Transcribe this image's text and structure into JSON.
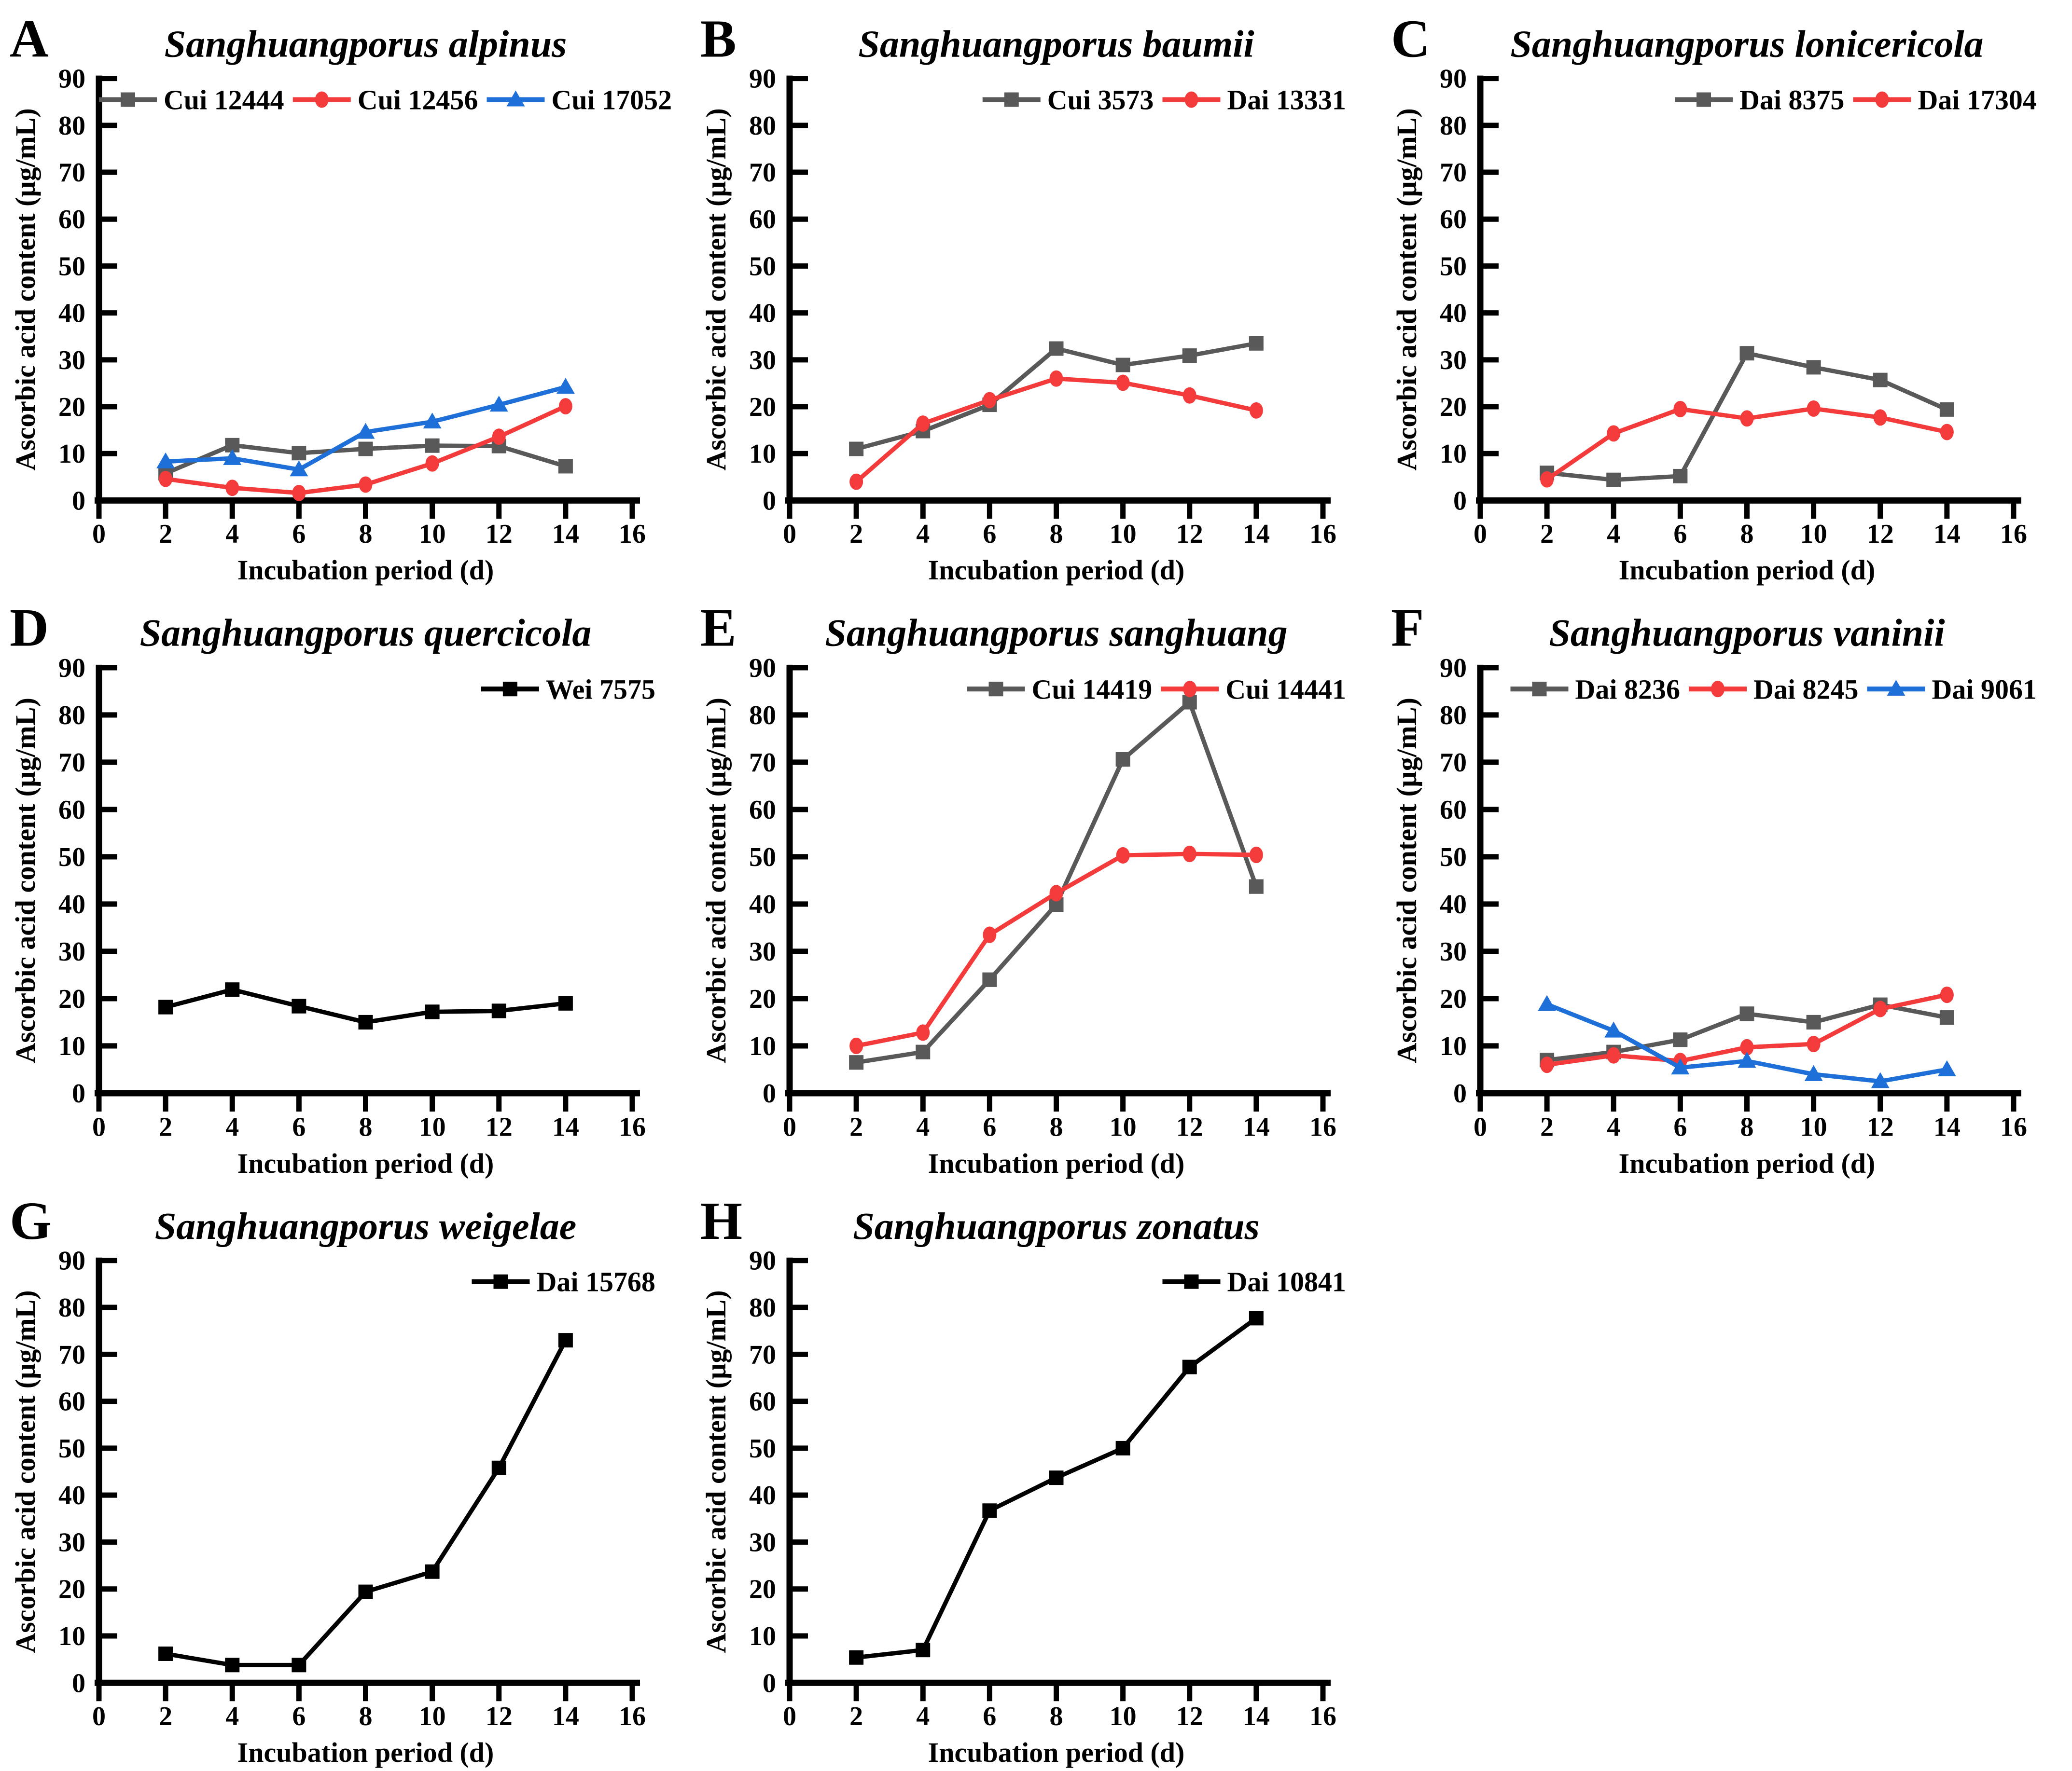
{
  "figure": {
    "xlabel": "Incubation period (d)",
    "ylabel": "Ascorbic acid content (µg/mL)",
    "xlim": [
      0,
      16
    ],
    "ylim": [
      0,
      90
    ],
    "x_ticks": [
      0,
      2,
      4,
      6,
      8,
      10,
      12,
      14,
      16
    ],
    "y_ticks": [
      0,
      10,
      20,
      30,
      40,
      50,
      60,
      70,
      80,
      90
    ],
    "grid": "off",
    "legend_position": "inside-top-right"
  },
  "palette": {
    "gray": "#595959",
    "red": "#F43B3C",
    "blue": "#1E6FD8",
    "black": "#000000"
  },
  "chart_data": [
    {
      "panel": "A",
      "type": "line",
      "title": "Sanghuangporus alpinus",
      "xlabel": "Incubation period (d)",
      "ylabel": "Ascorbic acid content (µg/mL)",
      "xlim": [
        0,
        16
      ],
      "ylim": [
        0,
        90
      ],
      "x": [
        2,
        4,
        6,
        8,
        10,
        12,
        14
      ],
      "series": [
        {
          "name": "Cui 12444",
          "color": "#595959",
          "marker": "square",
          "values": [
            5.8,
            11.8,
            10.1,
            11.0,
            11.7,
            11.6,
            7.3
          ]
        },
        {
          "name": "Cui 12456",
          "color": "#F43B3C",
          "marker": "circle",
          "values": [
            4.6,
            2.7,
            1.6,
            3.4,
            7.9,
            13.6,
            20.1
          ]
        },
        {
          "name": "Cui 17052",
          "color": "#1E6FD8",
          "marker": "triangle",
          "values": [
            8.3,
            9.0,
            6.6,
            14.6,
            16.8,
            20.4,
            24.2
          ]
        }
      ]
    },
    {
      "panel": "B",
      "type": "line",
      "title": "Sanghuangporus baumii",
      "xlabel": "Incubation period (d)",
      "ylabel": "Ascorbic acid content (µg/mL)",
      "xlim": [
        0,
        16
      ],
      "ylim": [
        0,
        90
      ],
      "x": [
        2,
        4,
        6,
        8,
        10,
        12,
        14
      ],
      "series": [
        {
          "name": "Cui 3573",
          "color": "#595959",
          "marker": "square",
          "values": [
            11.0,
            14.8,
            20.4,
            32.4,
            28.9,
            30.9,
            33.5
          ]
        },
        {
          "name": "Dai 13331",
          "color": "#F43B3C",
          "marker": "circle",
          "values": [
            4.0,
            16.4,
            21.4,
            26.0,
            25.1,
            22.4,
            19.2
          ]
        }
      ]
    },
    {
      "panel": "C",
      "type": "line",
      "title": "Sanghuangporus lonicericola",
      "xlabel": "Incubation period (d)",
      "ylabel": "Ascorbic acid content (µg/mL)",
      "xlim": [
        0,
        16
      ],
      "ylim": [
        0,
        90
      ],
      "x": [
        2,
        4,
        6,
        8,
        10,
        12,
        14
      ],
      "series": [
        {
          "name": "Dai 8375",
          "color": "#595959",
          "marker": "square",
          "values": [
            5.9,
            4.4,
            5.2,
            31.4,
            28.4,
            25.7,
            19.4
          ]
        },
        {
          "name": "Dai 17304",
          "color": "#F43B3C",
          "marker": "circle",
          "values": [
            4.5,
            14.3,
            19.5,
            17.5,
            19.6,
            17.7,
            14.6
          ]
        }
      ]
    },
    {
      "panel": "D",
      "type": "line",
      "title": "Sanghuangporus quercicola",
      "xlabel": "Incubation period (d)",
      "ylabel": "Ascorbic acid content (µg/mL)",
      "xlim": [
        0,
        16
      ],
      "ylim": [
        0,
        90
      ],
      "x": [
        2,
        4,
        6,
        8,
        10,
        12,
        14
      ],
      "series": [
        {
          "name": "Wei 7575",
          "color": "#000000",
          "marker": "square",
          "values": [
            18.2,
            21.9,
            18.4,
            15.0,
            17.2,
            17.4,
            19.0
          ]
        }
      ]
    },
    {
      "panel": "E",
      "type": "line",
      "title": "Sanghuangporus sanghuang",
      "xlabel": "Incubation period (d)",
      "ylabel": "Ascorbic acid content (µg/mL)",
      "xlim": [
        0,
        16
      ],
      "ylim": [
        0,
        90
      ],
      "x": [
        2,
        4,
        6,
        8,
        10,
        12,
        14
      ],
      "series": [
        {
          "name": "Cui 14419",
          "color": "#595959",
          "marker": "square",
          "values": [
            6.5,
            8.7,
            24.0,
            39.9,
            70.6,
            82.7,
            43.7
          ]
        },
        {
          "name": "Cui 14441",
          "color": "#F43B3C",
          "marker": "circle",
          "values": [
            10.0,
            12.8,
            33.5,
            42.3,
            50.3,
            50.6,
            50.4
          ]
        }
      ]
    },
    {
      "panel": "F",
      "type": "line",
      "title": "Sanghuangporus vaninii",
      "xlabel": "Incubation period (d)",
      "ylabel": "Ascorbic acid content (µg/mL)",
      "xlim": [
        0,
        16
      ],
      "ylim": [
        0,
        90
      ],
      "x": [
        2,
        4,
        6,
        8,
        10,
        12,
        14
      ],
      "series": [
        {
          "name": "Dai 8236",
          "color": "#595959",
          "marker": "square",
          "values": [
            7.0,
            8.7,
            11.3,
            16.8,
            15.0,
            18.7,
            16.0
          ]
        },
        {
          "name": "Dai 8245",
          "color": "#F43B3C",
          "marker": "circle",
          "values": [
            6.0,
            8.0,
            6.8,
            9.7,
            10.4,
            17.8,
            20.8
          ]
        },
        {
          "name": "Dai 9061",
          "color": "#1E6FD8",
          "marker": "triangle",
          "values": [
            18.8,
            13.2,
            5.4,
            6.8,
            4.0,
            2.5,
            5.0
          ]
        }
      ]
    },
    {
      "panel": "G",
      "type": "line",
      "title": "Sanghuangporus weigelae",
      "xlabel": "Incubation period (d)",
      "ylabel": "Ascorbic acid content (µg/mL)",
      "xlim": [
        0,
        16
      ],
      "ylim": [
        0,
        90
      ],
      "x": [
        2,
        4,
        6,
        8,
        10,
        12,
        14
      ],
      "series": [
        {
          "name": "Dai 15768",
          "color": "#000000",
          "marker": "square",
          "values": [
            6.2,
            3.8,
            3.8,
            19.4,
            23.7,
            45.8,
            73.0
          ]
        }
      ]
    },
    {
      "panel": "H",
      "type": "line",
      "title": "Sanghuangporus zonatus",
      "xlabel": "Incubation period (d)",
      "ylabel": "Ascorbic acid content (µg/mL)",
      "xlim": [
        0,
        16
      ],
      "ylim": [
        0,
        90
      ],
      "x": [
        2,
        4,
        6,
        8,
        10,
        12,
        14
      ],
      "series": [
        {
          "name": "Dai 10841",
          "color": "#000000",
          "marker": "square",
          "values": [
            5.4,
            7.0,
            36.7,
            43.7,
            50.0,
            67.3,
            77.7
          ]
        }
      ]
    }
  ]
}
